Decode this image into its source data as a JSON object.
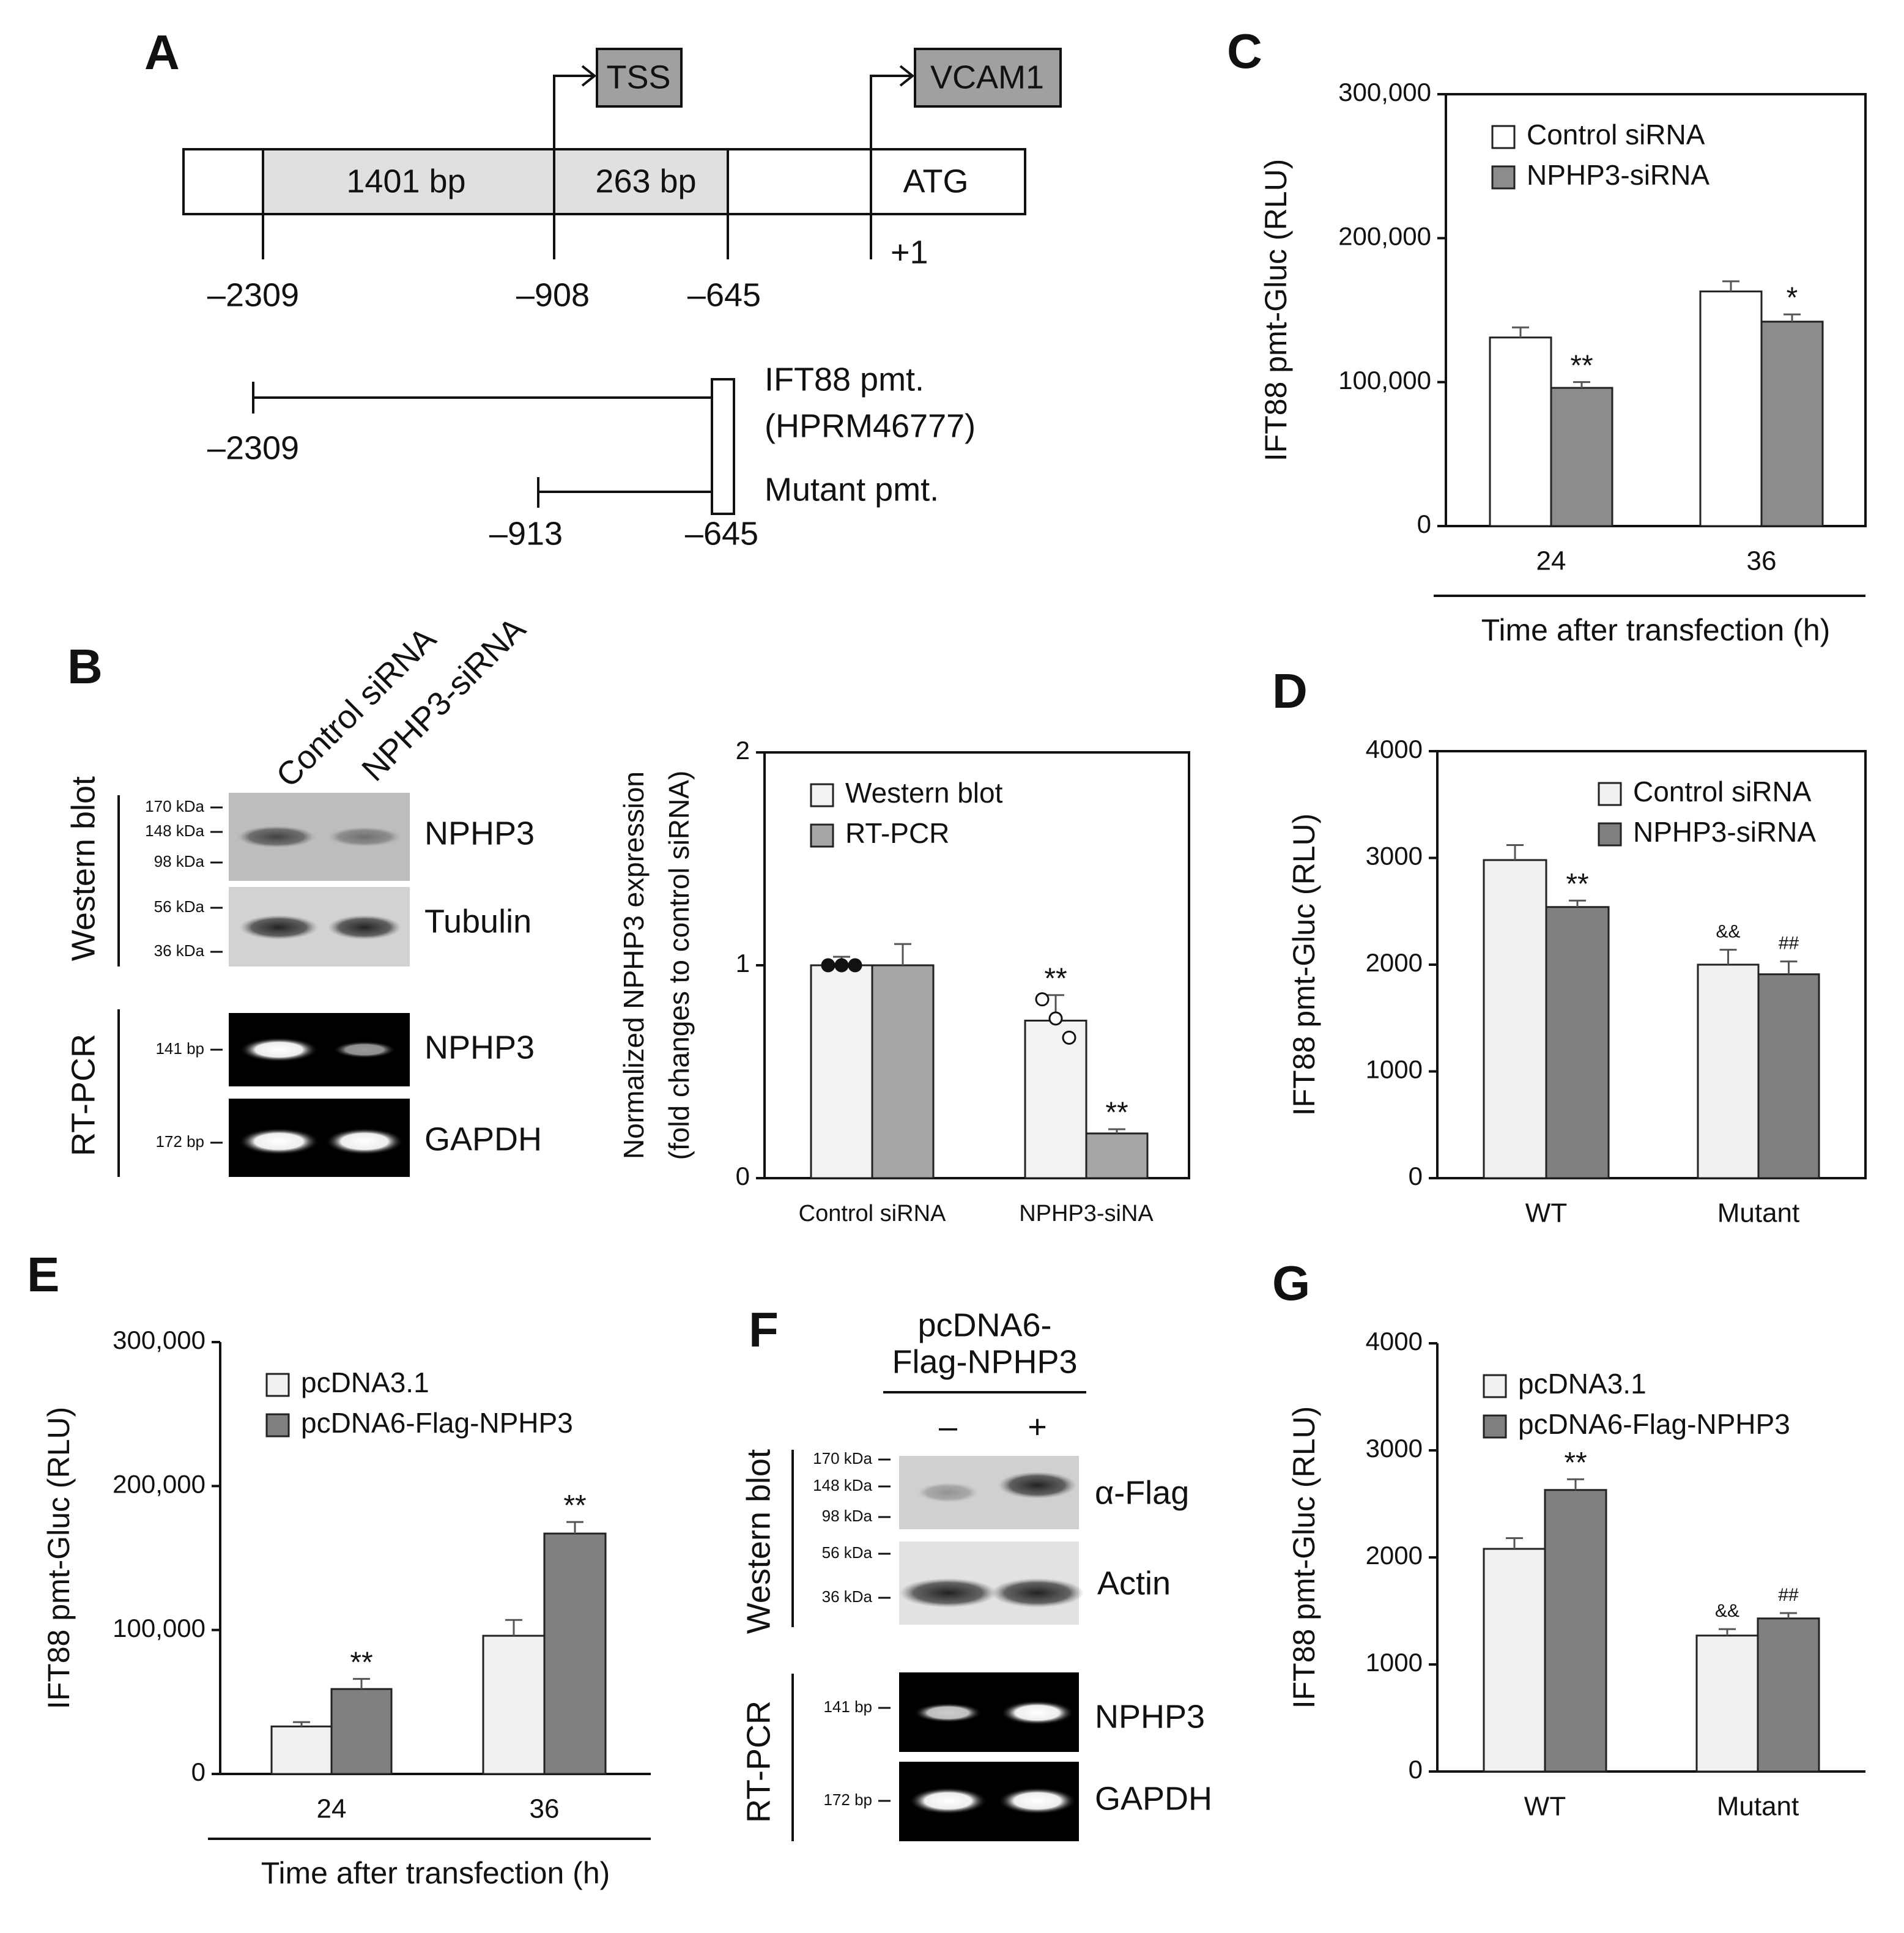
{
  "chart_data": [
    {
      "type": "bar",
      "panel": "B",
      "y_label": [
        "Normalized NPHP3 expression",
        "(fold changes to control siRNA)"
      ],
      "categories": [
        "Control siRNA",
        "NPHP3-siNA"
      ],
      "ylim": [
        0,
        2
      ],
      "yticks": [
        0,
        1,
        2
      ],
      "legend": "upper left",
      "frame": true,
      "series": [
        {
          "name": "Western blot",
          "color": "#f2f2f2",
          "values": [
            1.0,
            0.74
          ],
          "errors": [
            0.04,
            0.12
          ],
          "significance": [
            null,
            "**"
          ],
          "points": [
            [
              1.0,
              1.0,
              1.0
            ],
            [
              0.84,
              0.75,
              0.66
            ]
          ],
          "points_filled": [
            true,
            false
          ]
        },
        {
          "name": "RT-PCR",
          "color": "#a6a6a6",
          "values": [
            1.0,
            0.21
          ],
          "errors": [
            0.1,
            0.02
          ],
          "significance": [
            null,
            "**"
          ]
        }
      ]
    },
    {
      "type": "bar",
      "panel": "C",
      "y_label": "IFT88 pmt-Gluc (RLU)",
      "x_label": "Time after transfection (h)",
      "categories": [
        "24",
        "36"
      ],
      "ylim": [
        0,
        300000
      ],
      "yticks": [
        0,
        {
          "value": 100000,
          "label": "100,000"
        },
        {
          "value": 200000,
          "label": "200,000"
        },
        {
          "value": 300000,
          "label": "300,000"
        }
      ],
      "legend": "upper left",
      "frame": true,
      "series": [
        {
          "name": "Control siRNA",
          "color": "#ffffff",
          "values": [
            131000,
            163000
          ],
          "errors": [
            7000,
            7000
          ]
        },
        {
          "name": "NPHP3-siRNA",
          "color": "#8c8c8c",
          "values": [
            96000,
            142000
          ],
          "errors": [
            4000,
            5000
          ],
          "significance": [
            "**",
            "*"
          ]
        }
      ]
    },
    {
      "type": "bar",
      "panel": "D",
      "y_label": "IFT88 pmt-Gluc (RLU)",
      "categories": [
        "WT",
        "Mutant"
      ],
      "ylim": [
        0,
        4000
      ],
      "yticks": [
        0,
        1000,
        2000,
        3000,
        4000
      ],
      "legend": "upper right",
      "frame": true,
      "series": [
        {
          "name": "Control siRNA",
          "color": "#f0f0f0",
          "values": [
            2980,
            2000
          ],
          "errors": [
            140,
            140
          ],
          "significance": [
            null,
            "&&"
          ]
        },
        {
          "name": "NPHP3-siRNA",
          "color": "#808080",
          "values": [
            2540,
            1910
          ],
          "errors": [
            60,
            120
          ],
          "significance": [
            "**",
            "##"
          ]
        }
      ]
    },
    {
      "type": "bar",
      "panel": "E",
      "y_label": "IFT88 pmt-Gluc (RLU)",
      "x_label": "Time after transfection (h)",
      "categories": [
        "24",
        "36"
      ],
      "ylim": [
        0,
        300000
      ],
      "yticks": [
        0,
        {
          "value": 100000,
          "label": "100,000"
        },
        {
          "value": 200000,
          "label": "200,000"
        },
        {
          "value": 300000,
          "label": "300,000"
        }
      ],
      "legend": "upper left",
      "frame": false,
      "series": [
        {
          "name": "pcDNA3.1",
          "color": "#f0f0f0",
          "values": [
            33000,
            96000
          ],
          "errors": [
            3000,
            11000
          ]
        },
        {
          "name": "pcDNA6-Flag-NPHP3",
          "color": "#808080",
          "values": [
            59000,
            167000
          ],
          "errors": [
            7000,
            8000
          ],
          "significance": [
            "**",
            "**"
          ]
        }
      ]
    },
    {
      "type": "bar",
      "panel": "G",
      "y_label": "IFT88 pmt-Gluc (RLU)",
      "categories": [
        "WT",
        "Mutant"
      ],
      "ylim": [
        0,
        4000
      ],
      "yticks": [
        0,
        1000,
        2000,
        3000,
        4000
      ],
      "legend": "upper left",
      "frame": false,
      "series": [
        {
          "name": "pcDNA3.1",
          "color": "#f0f0f0",
          "values": [
            2080,
            1270
          ],
          "errors": [
            100,
            60
          ],
          "significance": [
            null,
            "&&"
          ]
        },
        {
          "name": "pcDNA6-Flag-NPHP3",
          "color": "#808080",
          "values": [
            2630,
            1430
          ],
          "errors": [
            100,
            50
          ],
          "significance": [
            "**",
            "##"
          ]
        }
      ]
    }
  ],
  "diagram": {
    "panel": "A",
    "tss": "TSS",
    "gene": "VCAM1",
    "segments": [
      "1401 bp",
      "263 bp",
      "ATG"
    ],
    "start": "+1",
    "positions": [
      "–2309",
      "–908",
      "–645"
    ],
    "constructs": [
      {
        "name": [
          "IFT88 pmt.",
          "(HPRM46777)"
        ],
        "start": "–2309"
      },
      {
        "name": [
          "Mutant pmt."
        ],
        "start": "–913",
        "end": "–645"
      }
    ]
  },
  "blot_b": {
    "lanes": [
      "Control siRNA",
      "NPHP3-siRNA"
    ],
    "methods": [
      "Western blot",
      "RT-PCR"
    ],
    "markers": [
      "170 kDa",
      "148 kDa",
      "98 kDa",
      "56 kDa",
      "36 kDa",
      "141 bp",
      "172 bp"
    ],
    "bands": [
      "NPHP3",
      "Tubulin",
      "NPHP3",
      "GAPDH"
    ]
  },
  "blot_f": {
    "panel": "F",
    "construct": [
      "pcDNA6-",
      "Flag-NPHP3"
    ],
    "lanes": [
      "–",
      "+"
    ],
    "methods": [
      "Western blot",
      "RT-PCR"
    ],
    "markers": [
      "170 kDa",
      "148 kDa",
      "98 kDa",
      "56 kDa",
      "36 kDa",
      "141 bp",
      "172 bp"
    ],
    "bands": [
      "α-Flag",
      "Actin",
      "NPHP3",
      "GAPDH"
    ]
  }
}
